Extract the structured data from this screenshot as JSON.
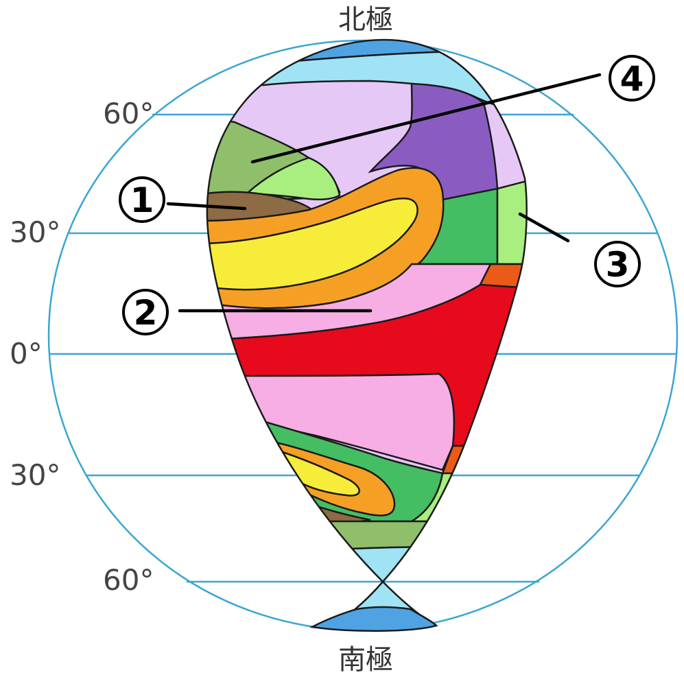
{
  "poles": {
    "north": "北極",
    "south": "南極"
  },
  "latitudes": {
    "n60": "60°",
    "n30": "30°",
    "eq": "0°",
    "s30": "30°",
    "s60": "60°"
  },
  "markers": {
    "m1": "1",
    "m2": "2",
    "m3": "3",
    "m4": "4"
  },
  "colors": {
    "globe_line": "#3aa6d2",
    "ice_cap": "#4fa3e3",
    "tundra": "#9fe3f5",
    "boreal_lavender": "#e6c8f7",
    "boreal_purple": "#8a5cc2",
    "temperate_green": "#8fbf6a",
    "light_green": "#a8ef7f",
    "green": "#45bd63",
    "mediterranean_brown": "#8d6b45",
    "steppe_orange": "#f5a025",
    "desert_yellow": "#f8ec3b",
    "savanna_pink": "#f6aee4",
    "rainforest_red": "#e60a1c",
    "dark_orange": "#eb5a17"
  }
}
